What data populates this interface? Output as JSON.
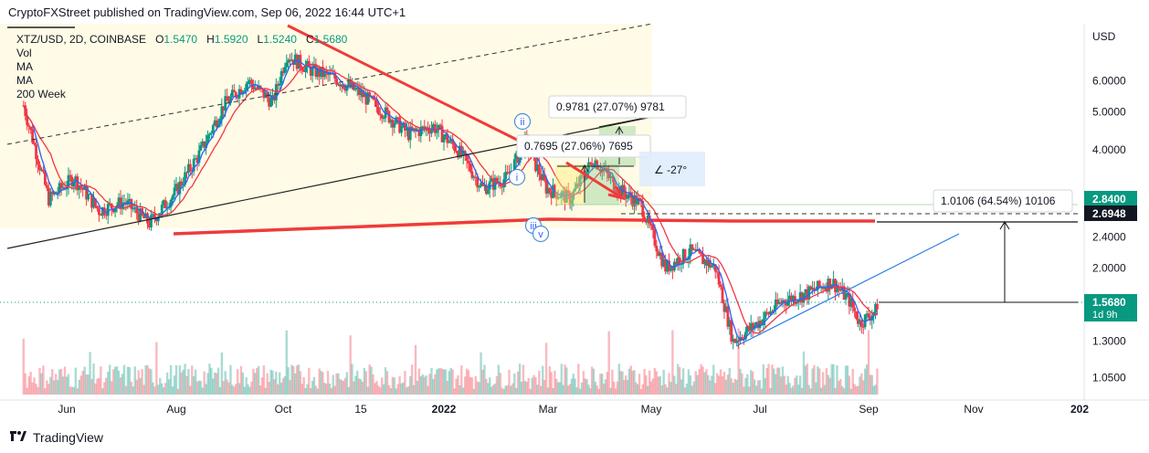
{
  "publisher_line": "CryptoFXStreet published on TradingView.com, Sep 06, 2022 16:44 UTC+1",
  "legend": {
    "symbol": "XTZ/USD, 2D, COINBASE",
    "o_label": "O",
    "o_value": "1.5470",
    "h_label": "H",
    "h_value": "1.5920",
    "l_label": "L",
    "l_value": "1.5240",
    "c_label": "C",
    "c_value": "1.5680",
    "indicators": [
      "Vol",
      "MA",
      "MA",
      "200 Week"
    ]
  },
  "footer": {
    "brand": "TradingView"
  },
  "colors": {
    "up": "#089981",
    "down": "#f23645",
    "ma_red": "#f23645",
    "ma_blue": "#2962ff",
    "trend_red": "#ef3b3b",
    "highlight_yellow": "#fff9e0",
    "blue_line": "#2a7be4"
  },
  "chart_data": {
    "type": "candlestick",
    "symbol": "XTZ/USD",
    "timeframe": "2D",
    "exchange": "COINBASE",
    "currency_label": "USD",
    "y_scale": "log",
    "ylim": [
      0.92,
      8.4
    ],
    "y_ticks": [
      "6.0000",
      "5.0000",
      "4.0000",
      "2.4000",
      "2.0000",
      "1.3000",
      "1.0500"
    ],
    "x_ticks": [
      "Jun",
      "Aug",
      "Oct",
      "15",
      "2022",
      "Mar",
      "May",
      "Jul",
      "Sep",
      "Nov",
      "202"
    ],
    "price_labels": [
      {
        "value": "2.8400",
        "style": "green"
      },
      {
        "value": "2.6948",
        "style": "dark"
      },
      {
        "value": "1.5680",
        "sub": "1d 9h",
        "style": "green"
      }
    ],
    "close_path": [
      [
        "2021-05-08",
        5.2
      ],
      [
        "2021-05-22",
        3.0
      ],
      [
        "2021-06-05",
        3.4
      ],
      [
        "2021-06-19",
        2.8
      ],
      [
        "2021-07-03",
        2.95
      ],
      [
        "2021-07-17",
        2.6
      ],
      [
        "2021-07-31",
        3.1
      ],
      [
        "2021-08-14",
        3.9
      ],
      [
        "2021-08-28",
        5.2
      ],
      [
        "2021-09-11",
        6.0
      ],
      [
        "2021-09-25",
        5.3
      ],
      [
        "2021-10-03",
        7.0
      ],
      [
        "2021-10-17",
        6.4
      ],
      [
        "2021-10-31",
        6.1
      ],
      [
        "2021-11-14",
        5.6
      ],
      [
        "2021-11-28",
        5.0
      ],
      [
        "2021-12-12",
        4.4
      ],
      [
        "2021-12-26",
        4.6
      ],
      [
        "2022-01-09",
        4.0
      ],
      [
        "2022-01-23",
        3.2
      ],
      [
        "2022-02-06",
        3.4
      ],
      [
        "2022-02-16",
        4.2
      ],
      [
        "2022-02-28",
        3.2
      ],
      [
        "2022-03-14",
        3.0
      ],
      [
        "2022-03-28",
        3.8
      ],
      [
        "2022-04-11",
        3.2
      ],
      [
        "2022-04-25",
        2.9
      ],
      [
        "2022-05-09",
        2.0
      ],
      [
        "2022-05-23",
        2.2
      ],
      [
        "2022-06-06",
        2.0
      ],
      [
        "2022-06-16",
        1.3
      ],
      [
        "2022-06-30",
        1.45
      ],
      [
        "2022-07-14",
        1.65
      ],
      [
        "2022-07-28",
        1.72
      ],
      [
        "2022-08-11",
        1.85
      ],
      [
        "2022-08-21",
        1.65
      ],
      [
        "2022-08-27",
        1.45
      ],
      [
        "2022-09-06",
        1.568
      ]
    ],
    "annotations": [
      {
        "text": "0.9781 (27.07%) 9781"
      },
      {
        "text": "0.7695 (27.06%) 7695"
      },
      {
        "text": "-27°"
      },
      {
        "text": "1.0106 (64.54%) 10106"
      },
      {
        "text": "ii"
      },
      {
        "text": "i"
      },
      {
        "text": "iii"
      },
      {
        "text": "v"
      }
    ]
  }
}
